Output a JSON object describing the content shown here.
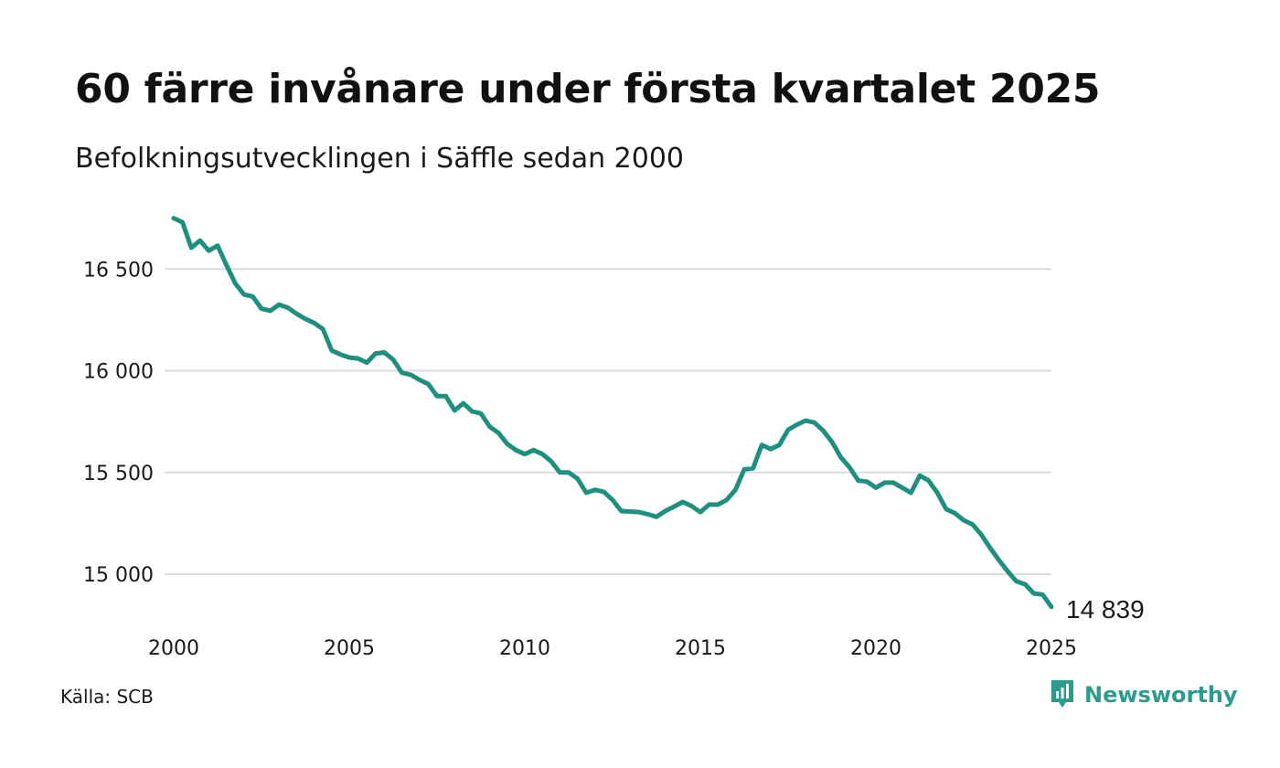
{
  "title": "60 färre invånare under första kvartalet 2025",
  "subtitle": "Befolkningsutvecklingen i Säffle sedan 2000",
  "source": "Källa: SCB",
  "brand": {
    "name": "Newsworthy",
    "icon": "newsworthy-logo-icon",
    "color": "#2a9d8f"
  },
  "end_label": "14 839",
  "chart_data": {
    "type": "line",
    "title": "60 färre invånare under första kvartalet 2025",
    "subtitle": "Befolkningsutvecklingen i Säffle sedan 2000",
    "xlabel": "",
    "ylabel": "",
    "x_ticks": [
      2000,
      2005,
      2010,
      2015,
      2020,
      2025
    ],
    "x_tick_labels": [
      "2000",
      "2005",
      "2010",
      "2015",
      "2020",
      "2025"
    ],
    "y_ticks": [
      15000,
      15500,
      16000,
      16500
    ],
    "y_tick_labels": [
      "15 000",
      "15 500",
      "16 000",
      "16 500"
    ],
    "xlim": [
      2000,
      2025
    ],
    "ylim": [
      14839,
      16750
    ],
    "grid": "horizontal",
    "line_color": "#1f8f80",
    "series": [
      {
        "x": [
          2000.0,
          2000.25,
          2000.5,
          2000.75,
          2001.0,
          2001.25,
          2001.5,
          2001.75,
          2002.0,
          2002.25,
          2002.5,
          2002.75,
          2003.0,
          2003.25,
          2003.5,
          2003.75,
          2004.0,
          2004.25,
          2004.5,
          2004.75,
          2005.0,
          2005.25,
          2005.5,
          2005.75,
          2006.0,
          2006.25,
          2006.5,
          2006.75,
          2007.0,
          2007.25,
          2007.5,
          2007.75,
          2008.0,
          2008.25,
          2008.5,
          2008.75,
          2009.0,
          2009.25,
          2009.5,
          2009.75,
          2010.0,
          2010.25,
          2010.5,
          2010.75,
          2011.0,
          2011.25,
          2011.5,
          2011.75,
          2012.0,
          2012.25,
          2012.5,
          2012.75,
          2013.0,
          2013.25,
          2013.5,
          2013.75,
          2014.0,
          2014.25,
          2014.5,
          2014.75,
          2015.0,
          2015.25,
          2015.5,
          2015.75,
          2016.0,
          2016.25,
          2016.5,
          2016.75,
          2017.0,
          2017.25,
          2017.5,
          2017.75,
          2018.0,
          2018.25,
          2018.5,
          2018.75,
          2019.0,
          2019.25,
          2019.5,
          2019.75,
          2020.0,
          2020.25,
          2020.5,
          2020.75,
          2021.0,
          2021.25,
          2021.5,
          2021.75,
          2022.0,
          2022.25,
          2022.5,
          2022.75,
          2023.0,
          2023.25,
          2023.5,
          2023.75,
          2024.0,
          2024.25,
          2024.5,
          2024.75,
          2025.0
        ],
        "values": [
          16750,
          16730,
          16605,
          16640,
          16590,
          16615,
          16520,
          16430,
          16375,
          16365,
          16305,
          16295,
          16325,
          16310,
          16280,
          16255,
          16235,
          16205,
          16100,
          16080,
          16065,
          16060,
          16040,
          16085,
          16090,
          16055,
          15990,
          15980,
          15955,
          15935,
          15875,
          15875,
          15805,
          15840,
          15800,
          15790,
          15725,
          15695,
          15640,
          15610,
          15590,
          15610,
          15590,
          15555,
          15500,
          15500,
          15470,
          15400,
          15415,
          15405,
          15365,
          15310,
          15308,
          15305,
          15295,
          15282,
          15310,
          15332,
          15355,
          15335,
          15305,
          15342,
          15342,
          15365,
          15415,
          15515,
          15520,
          15635,
          15615,
          15635,
          15710,
          15735,
          15755,
          15745,
          15705,
          15650,
          15575,
          15525,
          15460,
          15455,
          15425,
          15450,
          15450,
          15425,
          15400,
          15485,
          15460,
          15400,
          15320,
          15300,
          15265,
          15245,
          15195,
          15130,
          15070,
          15015,
          14965,
          14950,
          14905,
          14900,
          14839
        ]
      }
    ],
    "end_value": 14839
  }
}
